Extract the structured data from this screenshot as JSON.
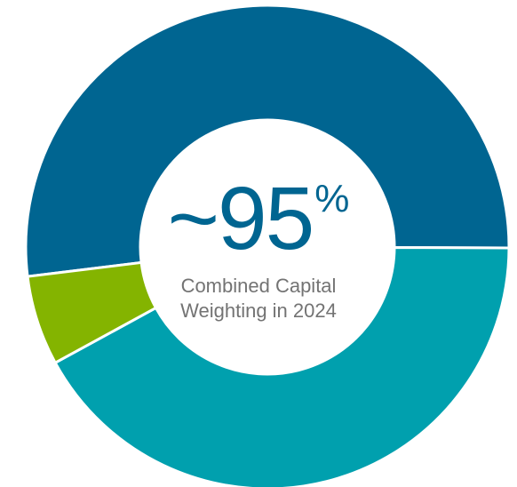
{
  "chart_data": {
    "type": "pie",
    "variant": "donut",
    "title": "",
    "categories": [
      "",
      "",
      ""
    ],
    "values": [
      52,
      42,
      6
    ],
    "colors": [
      "#006591",
      "#00a0ae",
      "#84b400"
    ],
    "center_value": "~95",
    "center_unit": "%",
    "center_caption_line1": "Combined Capital",
    "center_caption_line2": "Weighting in 2024"
  }
}
